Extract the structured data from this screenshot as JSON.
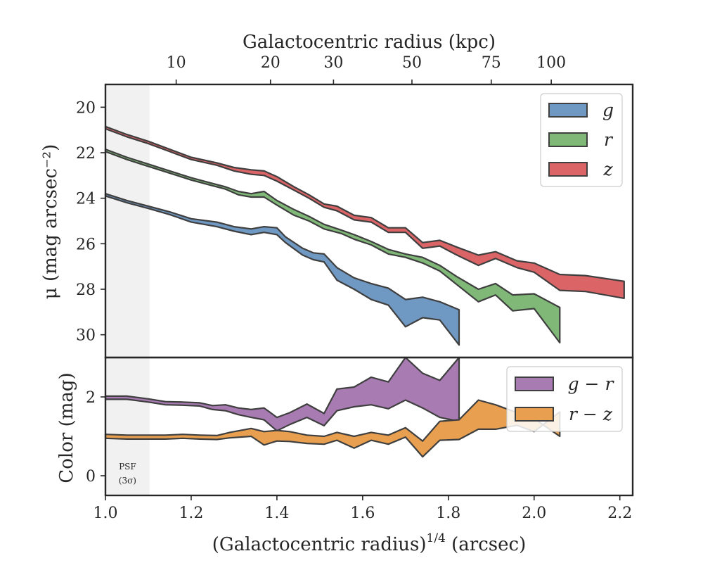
{
  "chart_data": [
    {
      "type": "area",
      "panel": "surface-brightness",
      "xlabel": "(Galactocentric radius)",
      "xlabel_superscript": "1/4",
      "xlabel_unit": " (arcsec)",
      "ylabel": "μ (mag arcsec⁻²)",
      "xlim": [
        1.0,
        2.23
      ],
      "ylim": [
        31.0,
        19.0
      ],
      "y_inverted": true,
      "yticks": [
        20,
        22,
        24,
        26,
        28,
        30
      ],
      "top_axis": {
        "label": "Galactocentric radius (kpc)",
        "ticks": [
          {
            "label": "10",
            "x": 1.165
          },
          {
            "label": "20",
            "x": 1.385
          },
          {
            "label": "30",
            "x": 1.532
          },
          {
            "label": "50",
            "x": 1.715
          },
          {
            "label": "75",
            "x": 1.9
          },
          {
            "label": "100",
            "x": 2.04
          }
        ]
      },
      "shaded_region": {
        "x": [
          1.0,
          1.103
        ],
        "label": "PSF",
        "sublabel": "(3σ)"
      },
      "legend_position": "top-right",
      "series": [
        {
          "name": "g",
          "color": "#6f98c2",
          "upper": [
            [
              1.0,
              23.8
            ],
            [
              1.05,
              24.1
            ],
            [
              1.1,
              24.35
            ],
            [
              1.15,
              24.6
            ],
            [
              1.2,
              24.9
            ],
            [
              1.26,
              25.05
            ],
            [
              1.3,
              25.25
            ],
            [
              1.34,
              25.35
            ],
            [
              1.37,
              25.25
            ],
            [
              1.4,
              25.3
            ],
            [
              1.42,
              25.7
            ],
            [
              1.46,
              26.2
            ],
            [
              1.485,
              26.4
            ],
            [
              1.51,
              26.45
            ],
            [
              1.54,
              27.05
            ],
            [
              1.58,
              27.5
            ],
            [
              1.62,
              27.75
            ],
            [
              1.66,
              27.95
            ],
            [
              1.7,
              28.45
            ],
            [
              1.74,
              28.35
            ],
            [
              1.78,
              28.55
            ],
            [
              1.825,
              28.9
            ]
          ],
          "lower": [
            [
              1.0,
              23.9
            ],
            [
              1.05,
              24.2
            ],
            [
              1.1,
              24.45
            ],
            [
              1.15,
              24.72
            ],
            [
              1.2,
              25.05
            ],
            [
              1.26,
              25.25
            ],
            [
              1.3,
              25.45
            ],
            [
              1.34,
              25.6
            ],
            [
              1.37,
              25.5
            ],
            [
              1.4,
              25.6
            ],
            [
              1.42,
              25.95
            ],
            [
              1.46,
              26.5
            ],
            [
              1.485,
              26.7
            ],
            [
              1.51,
              26.8
            ],
            [
              1.54,
              27.6
            ],
            [
              1.58,
              28.0
            ],
            [
              1.62,
              28.45
            ],
            [
              1.66,
              28.7
            ],
            [
              1.7,
              29.65
            ],
            [
              1.74,
              29.25
            ],
            [
              1.78,
              29.35
            ],
            [
              1.825,
              30.45
            ]
          ]
        },
        {
          "name": "r",
          "color": "#7fb877",
          "upper": [
            [
              1.0,
              21.85
            ],
            [
              1.05,
              22.2
            ],
            [
              1.1,
              22.5
            ],
            [
              1.15,
              22.8
            ],
            [
              1.2,
              23.1
            ],
            [
              1.25,
              23.35
            ],
            [
              1.28,
              23.5
            ],
            [
              1.31,
              23.7
            ],
            [
              1.34,
              23.8
            ],
            [
              1.37,
              23.7
            ],
            [
              1.4,
              24.1
            ],
            [
              1.44,
              24.5
            ],
            [
              1.475,
              24.8
            ],
            [
              1.51,
              25.15
            ],
            [
              1.55,
              25.4
            ],
            [
              1.58,
              25.6
            ],
            [
              1.62,
              25.9
            ],
            [
              1.66,
              26.25
            ],
            [
              1.7,
              26.45
            ],
            [
              1.74,
              26.6
            ],
            [
              1.78,
              26.95
            ],
            [
              1.82,
              27.45
            ],
            [
              1.87,
              28.0
            ],
            [
              1.91,
              27.75
            ],
            [
              1.95,
              28.25
            ],
            [
              2.0,
              28.2
            ],
            [
              2.06,
              28.8
            ]
          ],
          "lower": [
            [
              1.0,
              21.95
            ],
            [
              1.05,
              22.3
            ],
            [
              1.1,
              22.6
            ],
            [
              1.15,
              22.9
            ],
            [
              1.2,
              23.2
            ],
            [
              1.25,
              23.45
            ],
            [
              1.28,
              23.6
            ],
            [
              1.31,
              23.85
            ],
            [
              1.34,
              23.95
            ],
            [
              1.37,
              23.95
            ],
            [
              1.4,
              24.3
            ],
            [
              1.44,
              24.75
            ],
            [
              1.475,
              25.0
            ],
            [
              1.51,
              25.35
            ],
            [
              1.55,
              25.55
            ],
            [
              1.58,
              25.8
            ],
            [
              1.62,
              26.05
            ],
            [
              1.66,
              26.45
            ],
            [
              1.7,
              26.6
            ],
            [
              1.74,
              26.85
            ],
            [
              1.78,
              27.2
            ],
            [
              1.82,
              27.8
            ],
            [
              1.87,
              28.55
            ],
            [
              1.91,
              28.25
            ],
            [
              1.95,
              28.95
            ],
            [
              2.0,
              28.85
            ],
            [
              2.06,
              30.35
            ]
          ]
        },
        {
          "name": "z",
          "color": "#db6466",
          "upper": [
            [
              1.0,
              20.85
            ],
            [
              1.05,
              21.2
            ],
            [
              1.1,
              21.5
            ],
            [
              1.15,
              21.85
            ],
            [
              1.2,
              22.2
            ],
            [
              1.26,
              22.45
            ],
            [
              1.3,
              22.65
            ],
            [
              1.34,
              22.75
            ],
            [
              1.37,
              22.8
            ],
            [
              1.4,
              23.05
            ],
            [
              1.44,
              23.5
            ],
            [
              1.475,
              23.85
            ],
            [
              1.51,
              24.25
            ],
            [
              1.54,
              24.35
            ],
            [
              1.58,
              24.75
            ],
            [
              1.62,
              24.85
            ],
            [
              1.66,
              25.3
            ],
            [
              1.7,
              25.3
            ],
            [
              1.74,
              25.95
            ],
            [
              1.78,
              25.85
            ],
            [
              1.82,
              26.15
            ],
            [
              1.87,
              26.5
            ],
            [
              1.91,
              26.35
            ],
            [
              1.96,
              26.75
            ],
            [
              2.0,
              26.85
            ],
            [
              2.06,
              27.35
            ],
            [
              2.12,
              27.4
            ],
            [
              2.21,
              27.65
            ]
          ],
          "lower": [
            [
              1.0,
              20.95
            ],
            [
              1.05,
              21.3
            ],
            [
              1.1,
              21.6
            ],
            [
              1.15,
              21.95
            ],
            [
              1.2,
              22.3
            ],
            [
              1.26,
              22.55
            ],
            [
              1.3,
              22.8
            ],
            [
              1.34,
              22.95
            ],
            [
              1.37,
              23.0
            ],
            [
              1.4,
              23.25
            ],
            [
              1.44,
              23.65
            ],
            [
              1.475,
              24.0
            ],
            [
              1.51,
              24.4
            ],
            [
              1.54,
              24.55
            ],
            [
              1.58,
              24.95
            ],
            [
              1.62,
              25.05
            ],
            [
              1.66,
              25.5
            ],
            [
              1.7,
              25.5
            ],
            [
              1.74,
              26.2
            ],
            [
              1.78,
              26.1
            ],
            [
              1.82,
              26.5
            ],
            [
              1.87,
              26.95
            ],
            [
              1.91,
              26.65
            ],
            [
              1.96,
              27.05
            ],
            [
              2.0,
              27.25
            ],
            [
              2.06,
              28.05
            ],
            [
              2.12,
              28.1
            ],
            [
              2.21,
              28.4
            ]
          ]
        }
      ]
    },
    {
      "type": "area",
      "panel": "color",
      "xlabel": "(Galactocentric radius)",
      "ylabel": "Color (mag)",
      "xlim": [
        1.0,
        2.23
      ],
      "ylim": [
        -0.5,
        3.0
      ],
      "xticks": [
        1.0,
        1.2,
        1.4,
        1.6,
        1.8,
        2.0,
        2.2
      ],
      "xticklabels": [
        "1.0",
        "1.2",
        "1.4",
        "1.6",
        "1.8",
        "2.0",
        "2.2"
      ],
      "yticks": [
        0,
        2
      ],
      "legend_position": "top-right",
      "series": [
        {
          "name": "g − r",
          "color": "#a97bb3",
          "upper": [
            [
              1.0,
              2.02
            ],
            [
              1.05,
              2.02
            ],
            [
              1.1,
              1.95
            ],
            [
              1.14,
              1.88
            ],
            [
              1.18,
              1.87
            ],
            [
              1.22,
              1.85
            ],
            [
              1.25,
              1.78
            ],
            [
              1.28,
              1.8
            ],
            [
              1.31,
              1.72
            ],
            [
              1.34,
              1.68
            ],
            [
              1.37,
              1.72
            ],
            [
              1.4,
              1.48
            ],
            [
              1.43,
              1.6
            ],
            [
              1.47,
              1.82
            ],
            [
              1.51,
              1.58
            ],
            [
              1.54,
              2.2
            ],
            [
              1.58,
              2.25
            ],
            [
              1.62,
              2.5
            ],
            [
              1.66,
              2.38
            ],
            [
              1.7,
              3.0
            ],
            [
              1.74,
              2.6
            ],
            [
              1.78,
              2.42
            ],
            [
              1.825,
              3.0
            ]
          ],
          "lower": [
            [
              1.0,
              1.94
            ],
            [
              1.05,
              1.94
            ],
            [
              1.1,
              1.87
            ],
            [
              1.14,
              1.8
            ],
            [
              1.18,
              1.79
            ],
            [
              1.22,
              1.77
            ],
            [
              1.25,
              1.68
            ],
            [
              1.28,
              1.65
            ],
            [
              1.31,
              1.55
            ],
            [
              1.34,
              1.48
            ],
            [
              1.37,
              1.42
            ],
            [
              1.4,
              1.14
            ],
            [
              1.43,
              1.3
            ],
            [
              1.47,
              1.48
            ],
            [
              1.51,
              1.27
            ],
            [
              1.54,
              1.65
            ],
            [
              1.58,
              1.75
            ],
            [
              1.62,
              1.8
            ],
            [
              1.66,
              1.7
            ],
            [
              1.7,
              1.92
            ],
            [
              1.74,
              1.72
            ],
            [
              1.78,
              1.48
            ],
            [
              1.825,
              1.38
            ]
          ]
        },
        {
          "name": "r − z",
          "color": "#e89f4f",
          "upper": [
            [
              1.0,
              1.05
            ],
            [
              1.05,
              1.03
            ],
            [
              1.1,
              1.03
            ],
            [
              1.14,
              1.03
            ],
            [
              1.18,
              1.05
            ],
            [
              1.22,
              1.03
            ],
            [
              1.26,
              1.02
            ],
            [
              1.29,
              1.1
            ],
            [
              1.34,
              1.2
            ],
            [
              1.37,
              1.12
            ],
            [
              1.4,
              1.15
            ],
            [
              1.43,
              1.12
            ],
            [
              1.47,
              1.03
            ],
            [
              1.51,
              1.0
            ],
            [
              1.54,
              1.1
            ],
            [
              1.58,
              1.0
            ],
            [
              1.62,
              1.1
            ],
            [
              1.66,
              1.03
            ],
            [
              1.7,
              1.22
            ],
            [
              1.74,
              0.88
            ],
            [
              1.78,
              1.38
            ],
            [
              1.825,
              1.42
            ],
            [
              1.87,
              1.92
            ],
            [
              1.91,
              1.8
            ],
            [
              1.96,
              1.6
            ],
            [
              2.0,
              1.45
            ],
            [
              2.06,
              1.0
            ]
          ],
          "lower": [
            [
              1.0,
              0.95
            ],
            [
              1.05,
              0.93
            ],
            [
              1.1,
              0.93
            ],
            [
              1.14,
              0.93
            ],
            [
              1.18,
              0.95
            ],
            [
              1.22,
              0.93
            ],
            [
              1.26,
              0.92
            ],
            [
              1.29,
              0.96
            ],
            [
              1.34,
              1.0
            ],
            [
              1.37,
              0.78
            ],
            [
              1.4,
              0.88
            ],
            [
              1.43,
              0.87
            ],
            [
              1.47,
              0.82
            ],
            [
              1.51,
              0.8
            ],
            [
              1.54,
              0.9
            ],
            [
              1.58,
              0.7
            ],
            [
              1.62,
              0.9
            ],
            [
              1.66,
              0.8
            ],
            [
              1.7,
              0.98
            ],
            [
              1.74,
              0.48
            ],
            [
              1.78,
              0.9
            ],
            [
              1.825,
              0.92
            ],
            [
              1.87,
              1.18
            ],
            [
              1.91,
              1.18
            ],
            [
              1.96,
              1.28
            ],
            [
              2.0,
              1.12
            ],
            [
              2.06,
              1.62
            ]
          ]
        }
      ]
    }
  ]
}
